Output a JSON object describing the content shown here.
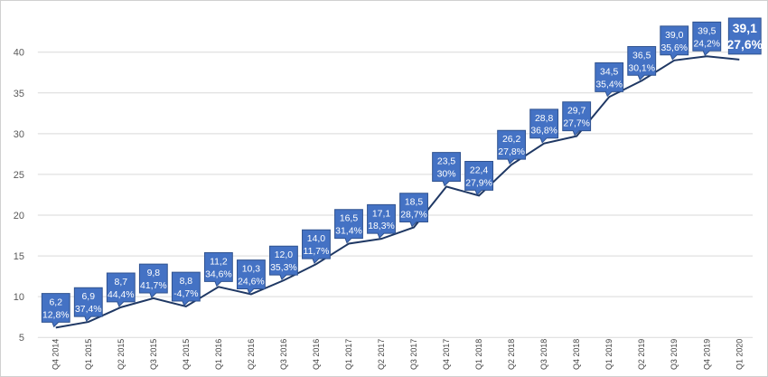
{
  "chart_data": {
    "type": "line",
    "title": "",
    "xlabel": "",
    "ylabel": "",
    "ylim": [
      5,
      40
    ],
    "yticks": [
      5,
      10,
      15,
      20,
      25,
      30,
      35,
      40
    ],
    "grid": true,
    "legend": "none",
    "colors": {
      "line": "#1f3864",
      "label_fill": "#4472c4",
      "label_border": "#2f528f",
      "grid": "#d9d9d9"
    },
    "categories": [
      "Q4 2014",
      "Q1 2015",
      "Q2 2015",
      "Q3 2015",
      "Q4 2015",
      "Q1 2016",
      "Q2 2016",
      "Q3 2016",
      "Q4 2016",
      "Q1 2017",
      "Q2 2017",
      "Q3 2017",
      "Q4 2017",
      "Q1 2018",
      "Q2 2018",
      "Q3 2018",
      "Q4 2018",
      "Q1 2019",
      "Q2 2019",
      "Q3 2019",
      "Q4 2019",
      "Q1 2020"
    ],
    "values": [
      6.2,
      6.9,
      8.7,
      9.8,
      8.8,
      11.2,
      10.3,
      12.0,
      14.0,
      16.5,
      17.1,
      18.5,
      23.5,
      22.4,
      26.2,
      28.8,
      29.7,
      34.5,
      36.5,
      39.0,
      39.5,
      39.1
    ],
    "value_labels": [
      "6,2",
      "6,9",
      "8,7",
      "9,8",
      "8,8",
      "11,2",
      "10,3",
      "12,0",
      "14,0",
      "16,5",
      "17,1",
      "18,5",
      "23,5",
      "22,4",
      "26,2",
      "28,8",
      "29,7",
      "34,5",
      "36,5",
      "39,0",
      "39,5",
      "39,1"
    ],
    "growth_labels": [
      "12,8%",
      "37,4%",
      "44,4%",
      "41,7%",
      "-4,7%",
      "34,6%",
      "24,6%",
      "35,3%",
      "11,7%",
      "31,4%",
      "18,3%",
      "28,7%",
      "30%",
      "27,9%",
      "27,8%",
      "36,8%",
      "27,7%",
      "35,4%",
      "30,1%",
      "35,6%",
      "24,2%",
      "27,6%"
    ]
  }
}
